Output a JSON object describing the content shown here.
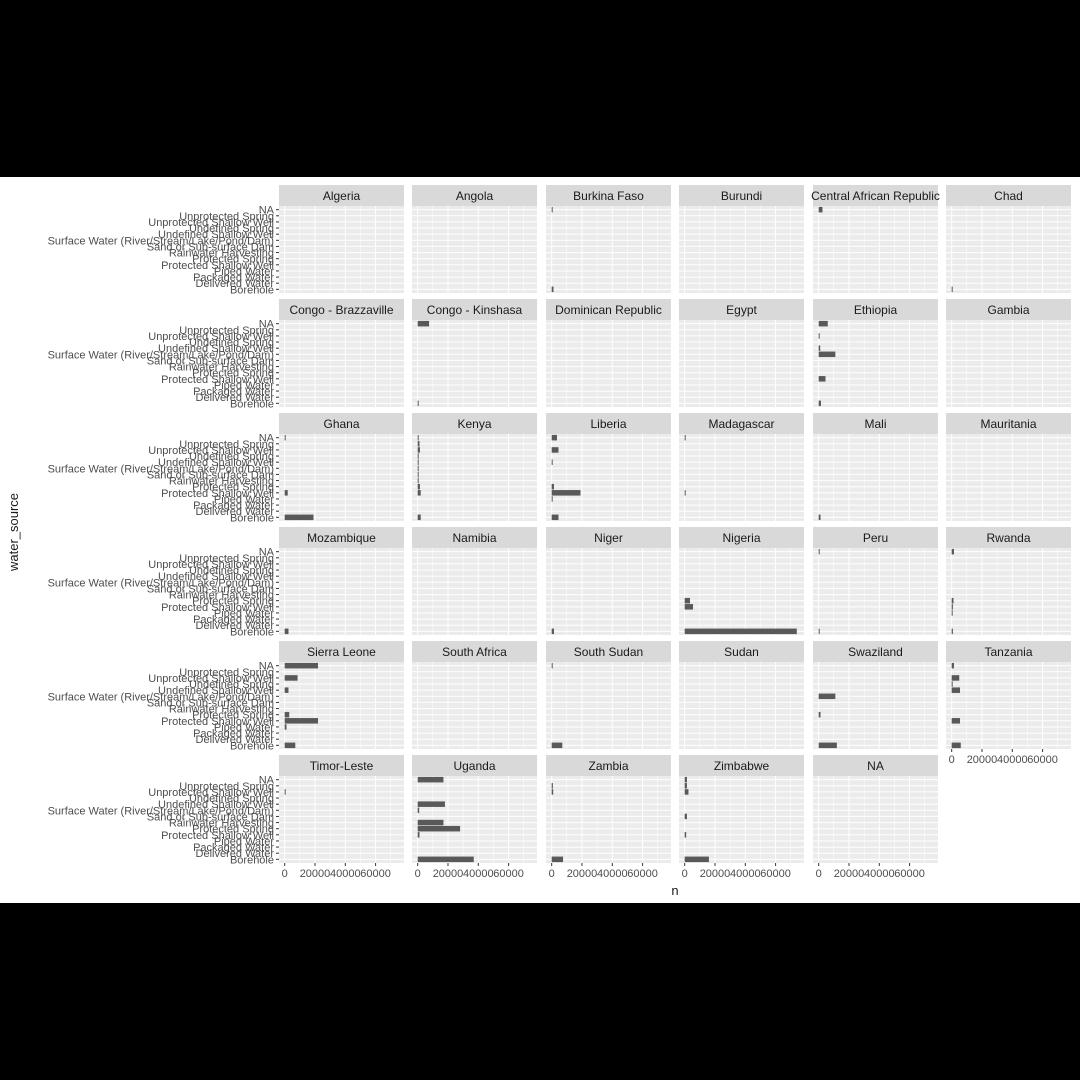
{
  "chart_data": {
    "type": "bar",
    "orientation": "horizontal",
    "facet": "country",
    "xlabel": "n",
    "ylabel": "water_source",
    "xlim": [
      0,
      75000
    ],
    "xticks": [
      0,
      20000,
      40000,
      60000
    ],
    "xtick_labels": [
      "0",
      "20000",
      "40000",
      "60000"
    ],
    "grid": true,
    "categories": [
      "Borehole",
      "Delivered Water",
      "Packaged Water",
      "Piped Water",
      "Protected Shallow Well",
      "Protected Spring",
      "Rainwater Harvesting",
      "Sand or Sub-surface Dam",
      "Surface Water (River/Stream/Lake/Pond/Dam)",
      "Undefined Shallow Well",
      "Undefined Spring",
      "Unprotected Shallow Well",
      "Unprotected Spring",
      "NA"
    ],
    "panels": [
      {
        "name": "Algeria",
        "values": [
          0,
          0,
          0,
          0,
          0,
          0,
          0,
          0,
          0,
          0,
          0,
          0,
          0,
          0
        ]
      },
      {
        "name": "Angola",
        "values": [
          0,
          0,
          0,
          0,
          0,
          0,
          0,
          0,
          0,
          0,
          0,
          0,
          0,
          0
        ]
      },
      {
        "name": "Burkina Faso",
        "values": [
          1200,
          0,
          0,
          0,
          0,
          0,
          0,
          0,
          0,
          0,
          0,
          0,
          0,
          200
        ]
      },
      {
        "name": "Burundi",
        "values": [
          0,
          0,
          0,
          0,
          0,
          0,
          0,
          0,
          0,
          0,
          0,
          0,
          0,
          0
        ]
      },
      {
        "name": "Central African Republic",
        "values": [
          0,
          0,
          0,
          0,
          0,
          0,
          0,
          0,
          0,
          0,
          0,
          0,
          0,
          2500
        ]
      },
      {
        "name": "Chad",
        "values": [
          200,
          0,
          0,
          0,
          0,
          0,
          0,
          0,
          0,
          0,
          0,
          0,
          0,
          0
        ]
      },
      {
        "name": "Congo - Brazzaville",
        "values": [
          0,
          0,
          0,
          0,
          0,
          0,
          0,
          0,
          0,
          0,
          0,
          0,
          0,
          0
        ]
      },
      {
        "name": "Congo - Kinshasa",
        "values": [
          300,
          0,
          0,
          0,
          0,
          0,
          0,
          0,
          0,
          0,
          0,
          0,
          0,
          7500
        ]
      },
      {
        "name": "Dominican Republic",
        "values": [
          0,
          0,
          0,
          0,
          0,
          0,
          0,
          0,
          0,
          0,
          0,
          0,
          0,
          0
        ]
      },
      {
        "name": "Egypt",
        "values": [
          0,
          0,
          0,
          0,
          0,
          0,
          0,
          0,
          0,
          0,
          0,
          0,
          0,
          0
        ]
      },
      {
        "name": "Ethiopia",
        "values": [
          1500,
          0,
          0,
          0,
          4500,
          0,
          0,
          0,
          11000,
          1000,
          0,
          500,
          0,
          6000
        ]
      },
      {
        "name": "Gambia",
        "values": [
          0,
          0,
          0,
          0,
          0,
          0,
          0,
          0,
          0,
          0,
          0,
          0,
          0,
          0
        ]
      },
      {
        "name": "Ghana",
        "values": [
          19000,
          0,
          0,
          0,
          2000,
          0,
          0,
          0,
          0,
          0,
          0,
          0,
          0,
          500
        ]
      },
      {
        "name": "Kenya",
        "values": [
          2000,
          0,
          0,
          0,
          2000,
          1500,
          200,
          100,
          300,
          500,
          200,
          1500,
          1200,
          300
        ]
      },
      {
        "name": "Liberia",
        "values": [
          4500,
          0,
          0,
          200,
          19000,
          1500,
          0,
          0,
          0,
          200,
          0,
          4500,
          0,
          3500
        ]
      },
      {
        "name": "Madagascar",
        "values": [
          0,
          0,
          0,
          0,
          400,
          0,
          0,
          0,
          0,
          0,
          0,
          0,
          0,
          300
        ]
      },
      {
        "name": "Mali",
        "values": [
          1200,
          0,
          0,
          0,
          0,
          0,
          0,
          0,
          0,
          0,
          0,
          0,
          0,
          0
        ]
      },
      {
        "name": "Mauritania",
        "values": [
          0,
          0,
          0,
          0,
          0,
          0,
          0,
          0,
          0,
          0,
          0,
          0,
          0,
          0
        ]
      },
      {
        "name": "Mozambique",
        "values": [
          2500,
          0,
          0,
          0,
          0,
          0,
          0,
          0,
          0,
          0,
          0,
          0,
          0,
          0
        ]
      },
      {
        "name": "Namibia",
        "values": [
          0,
          0,
          0,
          0,
          0,
          0,
          0,
          0,
          0,
          0,
          0,
          0,
          0,
          0
        ]
      },
      {
        "name": "Niger",
        "values": [
          1500,
          0,
          0,
          0,
          0,
          0,
          0,
          0,
          0,
          0,
          0,
          0,
          0,
          0
        ]
      },
      {
        "name": "Nigeria",
        "values": [
          74000,
          0,
          0,
          0,
          5500,
          3500,
          0,
          0,
          0,
          0,
          0,
          0,
          0,
          0
        ]
      },
      {
        "name": "Peru",
        "values": [
          500,
          0,
          0,
          0,
          0,
          0,
          0,
          0,
          0,
          0,
          0,
          0,
          0,
          200
        ]
      },
      {
        "name": "Rwanda",
        "values": [
          800,
          0,
          0,
          600,
          800,
          1200,
          0,
          0,
          0,
          0,
          0,
          0,
          0,
          1500
        ]
      },
      {
        "name": "Sierra Leone",
        "values": [
          7000,
          0,
          0,
          1200,
          22000,
          3000,
          0,
          0,
          0,
          2500,
          0,
          8500,
          0,
          22000
        ]
      },
      {
        "name": "South Africa",
        "values": [
          0,
          0,
          0,
          0,
          0,
          0,
          0,
          0,
          0,
          0,
          0,
          0,
          0,
          0
        ]
      },
      {
        "name": "South Sudan",
        "values": [
          7000,
          0,
          0,
          0,
          0,
          0,
          0,
          0,
          0,
          0,
          0,
          0,
          0,
          300
        ]
      },
      {
        "name": "Sudan",
        "values": [
          0,
          0,
          0,
          0,
          0,
          0,
          0,
          0,
          0,
          0,
          0,
          0,
          0,
          0
        ]
      },
      {
        "name": "Swaziland",
        "values": [
          12000,
          0,
          0,
          0,
          0,
          1200,
          0,
          0,
          11000,
          0,
          0,
          0,
          0,
          0
        ]
      },
      {
        "name": "Tanzania",
        "values": [
          6000,
          0,
          0,
          0,
          5500,
          0,
          0,
          0,
          0,
          5500,
          500,
          5000,
          0,
          1500
        ]
      },
      {
        "name": "Timor-Leste",
        "values": [
          0,
          0,
          0,
          0,
          0,
          0,
          0,
          0,
          0,
          0,
          0,
          500,
          0,
          0
        ]
      },
      {
        "name": "Uganda",
        "values": [
          37000,
          0,
          0,
          0,
          1200,
          28000,
          17000,
          0,
          1000,
          18000,
          0,
          0,
          0,
          17000
        ]
      },
      {
        "name": "Zambia",
        "values": [
          7500,
          0,
          0,
          0,
          0,
          0,
          0,
          0,
          0,
          0,
          0,
          1000,
          800,
          0
        ]
      },
      {
        "name": "Zimbabwe",
        "values": [
          16000,
          0,
          0,
          0,
          1000,
          0,
          0,
          1500,
          0,
          0,
          0,
          2500,
          1500,
          1500
        ]
      },
      {
        "name": "NA",
        "values": [
          0,
          0,
          0,
          0,
          0,
          0,
          0,
          0,
          0,
          0,
          0,
          0,
          0,
          0
        ]
      }
    ],
    "colors": {
      "bar": "#595959",
      "panel_bg": "#ebebeb",
      "strip_bg": "#d9d9d9",
      "grid": "#ffffff",
      "text": "#4d4d4d",
      "title_text": "#1a1a1a"
    }
  }
}
